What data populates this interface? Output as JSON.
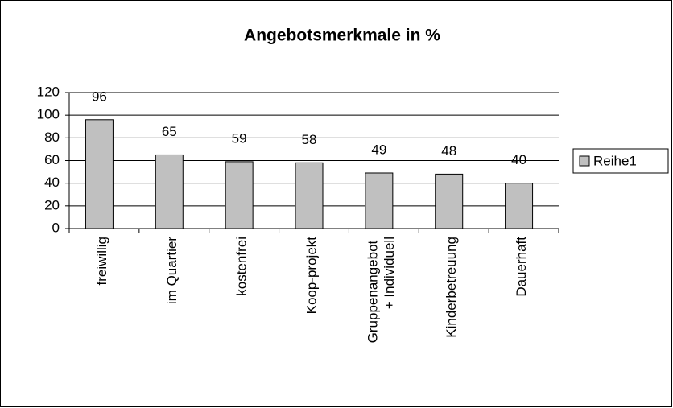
{
  "chart_data": {
    "type": "bar",
    "title": "Angebotsmerkmale in %",
    "categories": [
      "freiwillig",
      "im Quartier",
      "kostenfrei",
      "Koop-projekt",
      "Gruppenangebot + Individuell",
      "Kinderbetreuung",
      "Dauerhaft"
    ],
    "series": [
      {
        "name": "Reihe1",
        "color": "#c0c0c0",
        "values": [
          96,
          65,
          59,
          58,
          49,
          48,
          40
        ]
      }
    ],
    "ylim": [
      0,
      120
    ],
    "yticks": [
      0,
      20,
      40,
      60,
      80,
      100,
      120
    ],
    "grid": true,
    "legend": "right"
  }
}
